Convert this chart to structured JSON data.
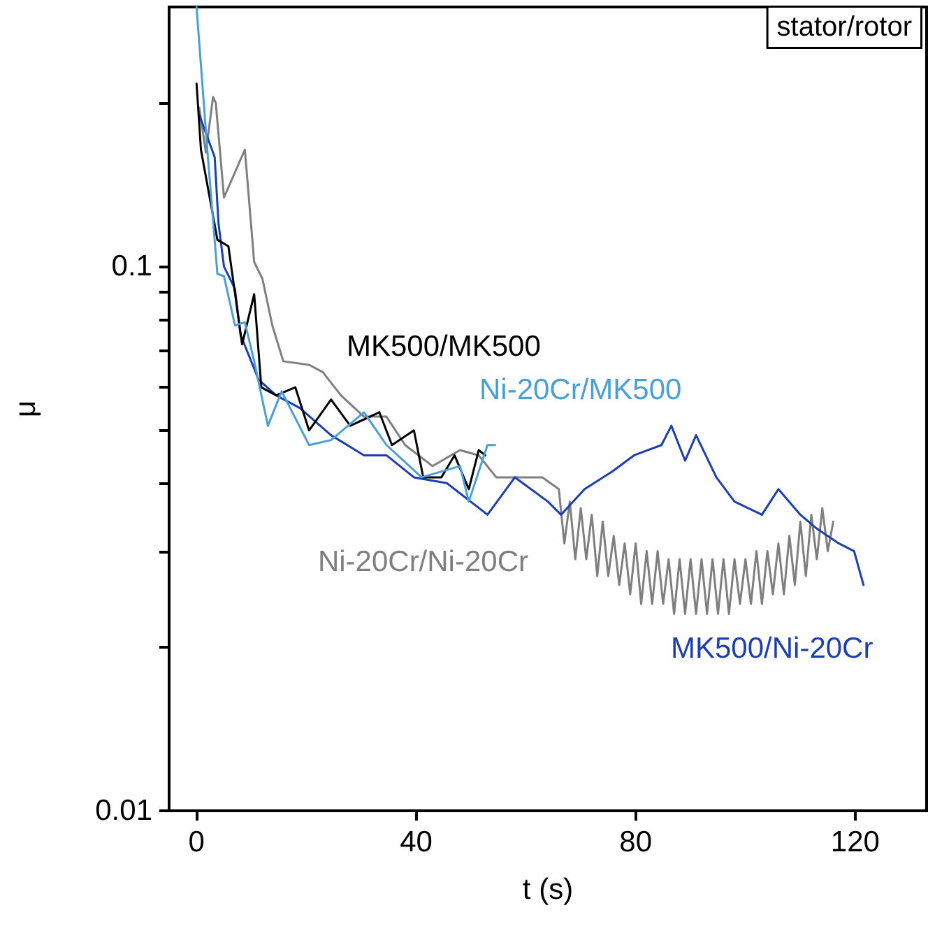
{
  "chart_data": {
    "type": "line",
    "xlabel": "t (s)",
    "ylabel": "μ",
    "log": "y",
    "xlim": [
      -5,
      133
    ],
    "ylim": [
      0.01,
      0.3
    ],
    "xticks": [
      0,
      40,
      80,
      120
    ],
    "yticks": [
      0.01,
      {
        "value": 0.02,
        "label": null
      },
      {
        "value": 0.03,
        "label": null
      },
      {
        "value": 0.04,
        "label": null
      },
      {
        "value": 0.05,
        "label": null
      },
      {
        "value": 0.06,
        "label": null
      },
      {
        "value": 0.07,
        "label": null
      },
      {
        "value": 0.08,
        "label": null
      },
      {
        "value": 0.09,
        "label": null
      },
      0.1,
      {
        "value": 0.2,
        "label": null
      }
    ],
    "grid": false,
    "legend": false,
    "marker": "none",
    "line_style": "solid",
    "annotations": [
      "stator/rotor"
    ],
    "series": [
      {
        "name": "Ni-20Cr/Ni-20Cr",
        "color": "#7f7f7f",
        "x": [
          0.5,
          1.7,
          3,
          3.5,
          5,
          8.8,
          10.5,
          12,
          13.8,
          15.8,
          20.5,
          23,
          26.3,
          30.5,
          34.6,
          38,
          43,
          48,
          51.4,
          54.6,
          59.6,
          63,
          66,
          67,
          68,
          69,
          70,
          71,
          72,
          73,
          74,
          75,
          76,
          77,
          78,
          79,
          80,
          81,
          82,
          83,
          84,
          85,
          86,
          87,
          88,
          89,
          90,
          91,
          92,
          93,
          94,
          95,
          96,
          97,
          98,
          99,
          100,
          101,
          102,
          103,
          104,
          105,
          106,
          107,
          108,
          109,
          110,
          111,
          112,
          113,
          114,
          115,
          116
        ],
        "values": [
          0.196,
          0.162,
          0.205,
          0.2,
          0.134,
          0.164,
          0.102,
          0.095,
          0.078,
          0.067,
          0.066,
          0.064,
          0.058,
          0.053,
          0.053,
          0.047,
          0.043,
          0.046,
          0.045,
          0.041,
          0.041,
          0.041,
          0.039,
          0.031,
          0.037,
          0.029,
          0.036,
          0.029,
          0.035,
          0.027,
          0.034,
          0.027,
          0.032,
          0.026,
          0.031,
          0.025,
          0.031,
          0.024,
          0.03,
          0.024,
          0.03,
          0.024,
          0.029,
          0.023,
          0.029,
          0.023,
          0.029,
          0.023,
          0.029,
          0.023,
          0.029,
          0.023,
          0.029,
          0.023,
          0.029,
          0.024,
          0.029,
          0.024,
          0.03,
          0.024,
          0.03,
          0.025,
          0.031,
          0.025,
          0.032,
          0.026,
          0.034,
          0.027,
          0.035,
          0.029,
          0.036,
          0.03,
          0.034
        ]
      },
      {
        "name": "MK500/Ni-20Cr",
        "color": "#1c3fb0",
        "x": [
          0.5,
          3.3,
          4,
          5,
          7,
          8,
          11.3,
          14.5,
          18.8,
          24.5,
          30.5,
          34.6,
          39.6,
          45.6,
          53,
          58,
          64,
          66.4,
          70.7,
          75.7,
          79.7,
          84.7,
          86.5,
          89,
          91,
          94.7,
          98,
          103,
          106,
          110,
          113,
          117,
          119.8,
          121.5
        ],
        "values": [
          0.19,
          0.159,
          0.12,
          0.1,
          0.091,
          0.075,
          0.062,
          0.058,
          0.055,
          0.049,
          0.045,
          0.045,
          0.041,
          0.04,
          0.035,
          0.041,
          0.037,
          0.035,
          0.039,
          0.042,
          0.045,
          0.047,
          0.051,
          0.044,
          0.049,
          0.041,
          0.037,
          0.035,
          0.039,
          0.035,
          0.033,
          0.031,
          0.03,
          0.026
        ]
      },
      {
        "name": "MK500/MK500",
        "color": "#000000",
        "x": [
          0,
          0.8,
          3.8,
          5.8,
          8.3,
          10.5,
          11.8,
          14.5,
          18,
          20.5,
          24.5,
          28,
          33.3,
          35.6,
          39.6,
          41.3,
          44.6,
          47,
          49.6,
          51.4,
          52.6
        ],
        "values": [
          0.217,
          0.164,
          0.112,
          0.109,
          0.072,
          0.089,
          0.06,
          0.058,
          0.06,
          0.05,
          0.057,
          0.051,
          0.054,
          0.047,
          0.05,
          0.041,
          0.041,
          0.045,
          0.039,
          0.046,
          0.045
        ]
      },
      {
        "name": "Ni-20Cr/MK500",
        "color": "#4a9fd6",
        "x": [
          0,
          2,
          3.8,
          5,
          7,
          8.8,
          10.5,
          13,
          15.5,
          20.5,
          24.5,
          30.5,
          34.6,
          41,
          48,
          49.6,
          53,
          54.4
        ],
        "values": [
          0.3,
          0.162,
          0.097,
          0.096,
          0.078,
          0.079,
          0.067,
          0.051,
          0.059,
          0.047,
          0.048,
          0.054,
          0.047,
          0.041,
          0.043,
          0.037,
          0.047,
          0.047
        ]
      }
    ]
  }
}
